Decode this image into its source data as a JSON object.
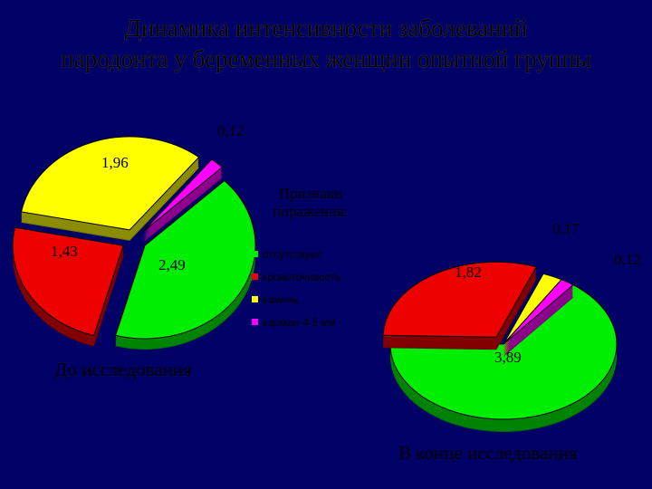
{
  "title": {
    "line1": "Динамика интенсивности заболеваний",
    "line2": "пародонта у беременных женщин опытной группы"
  },
  "legend": {
    "title_line1": "Признаки",
    "title_line2": "поражения:",
    "items": [
      "отсутствуют",
      "кровоточивость",
      "камень",
      "карман 4-5 мм"
    ]
  },
  "colors": [
    "#00ee00",
    "#ee0000",
    "#ffff00",
    "#ff00ff"
  ],
  "chart_data": [
    {
      "type": "pie",
      "caption": "До исследования",
      "categories": [
        "отсутствуют",
        "кровоточивость",
        "камень",
        "карман 4-5 мм"
      ],
      "values": [
        2.49,
        1.43,
        1.96,
        0.12
      ],
      "labels": [
        "2,49",
        "1,43",
        "1,96",
        "0,12"
      ],
      "exploded": true
    },
    {
      "type": "pie",
      "caption": "В конце исследования",
      "categories": [
        "отсутствуют",
        "кровоточивость",
        "камень",
        "карман 4-5 мм"
      ],
      "values": [
        3.89,
        1.82,
        0.17,
        0.12
      ],
      "labels": [
        "3,89",
        "1,82",
        "0,17",
        "0,12"
      ],
      "exploded": false
    }
  ]
}
